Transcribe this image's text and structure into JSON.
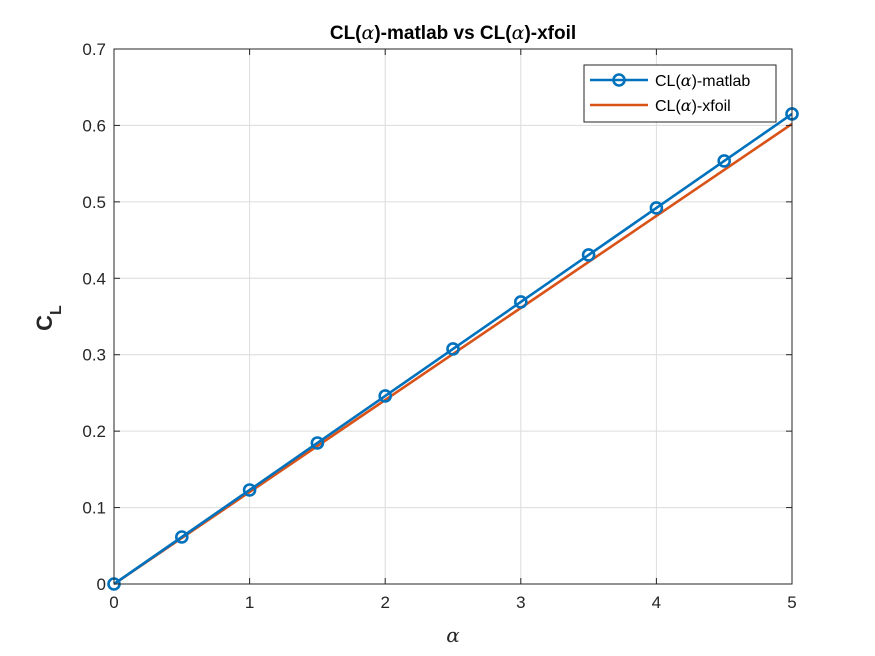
{
  "chart_data": {
    "type": "line",
    "title_prefix": "CL(",
    "title_greek": "α",
    "title_middle": ")-matlab vs CL(",
    "title_suffix": ")-xfoil",
    "xlabel": "α",
    "ylabel_main": "C",
    "ylabel_sub": "L",
    "xlim": [
      0,
      5
    ],
    "ylim": [
      0,
      0.7
    ],
    "xticks": [
      0,
      1,
      2,
      3,
      4,
      5
    ],
    "xtick_labels": [
      "0",
      "1",
      "2",
      "3",
      "4",
      "5"
    ],
    "yticks": [
      0,
      0.1,
      0.2,
      0.3,
      0.4,
      0.5,
      0.6,
      0.7
    ],
    "ytick_labels": [
      "0",
      "0.1",
      "0.2",
      "0.3",
      "0.4",
      "0.5",
      "0.6",
      "0.7"
    ],
    "grid": true,
    "legend_position": "top-right",
    "series": [
      {
        "name_prefix": "CL(",
        "name_greek": "α",
        "name_suffix": ")-matlab",
        "color": "#0072BD",
        "marker": "circle",
        "x": [
          0,
          0.5,
          1,
          1.5,
          2,
          2.5,
          3,
          3.5,
          4,
          4.5,
          5
        ],
        "y": [
          0,
          0.0615,
          0.123,
          0.1845,
          0.246,
          0.3075,
          0.369,
          0.4305,
          0.492,
          0.5535,
          0.615
        ]
      },
      {
        "name_prefix": "CL(",
        "name_greek": "α",
        "name_suffix": ")-xfoil",
        "color": "#D95319",
        "marker": "none",
        "x": [
          0,
          5
        ],
        "y": [
          0,
          0.602
        ]
      }
    ]
  }
}
